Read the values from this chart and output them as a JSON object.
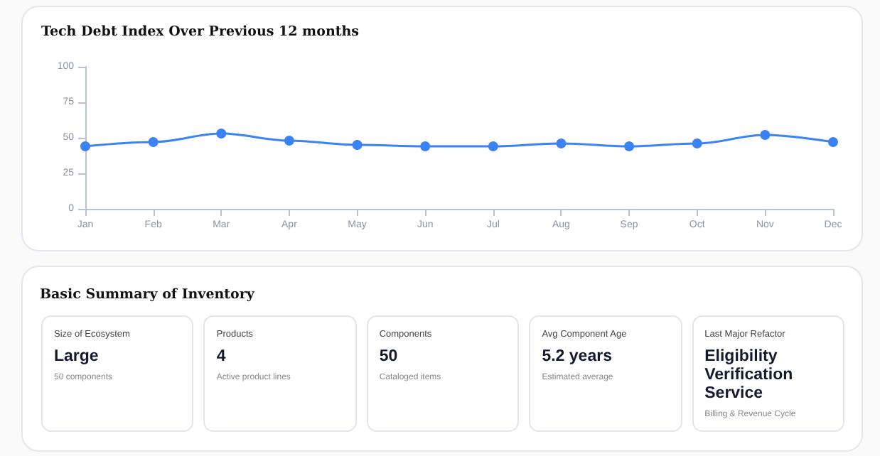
{
  "chart_data": [
    {
      "type": "line",
      "title": "Tech Debt Index Over Previous 12 months",
      "categories": [
        "Jan",
        "Feb",
        "Mar",
        "Apr",
        "May",
        "Jun",
        "Jul",
        "Aug",
        "Sep",
        "Oct",
        "Nov",
        "Dec"
      ],
      "series": [
        {
          "color": "#3b82f6",
          "values": [
            44,
            47,
            53,
            48,
            45,
            44,
            44,
            46,
            44,
            46,
            52,
            47
          ]
        }
      ],
      "ylim": [
        0,
        100
      ],
      "yticks": [
        0,
        25,
        50,
        75,
        100
      ],
      "grid": false,
      "marker": "circle",
      "line_style": "solid"
    },
    {
      "type": "other",
      "title": "Basic Summary of Inventory",
      "annotations": [
        "Size of Ecosystem",
        "Large",
        "50 components",
        "Products",
        "4",
        "Active product lines",
        "Components",
        "50",
        "Cataloged items",
        "Avg Component Age",
        "5.2 years",
        "Estimated average",
        "Last Major Refactor",
        "Eligibility Verification Service",
        "Billing & Revenue Cycle"
      ]
    }
  ]
}
